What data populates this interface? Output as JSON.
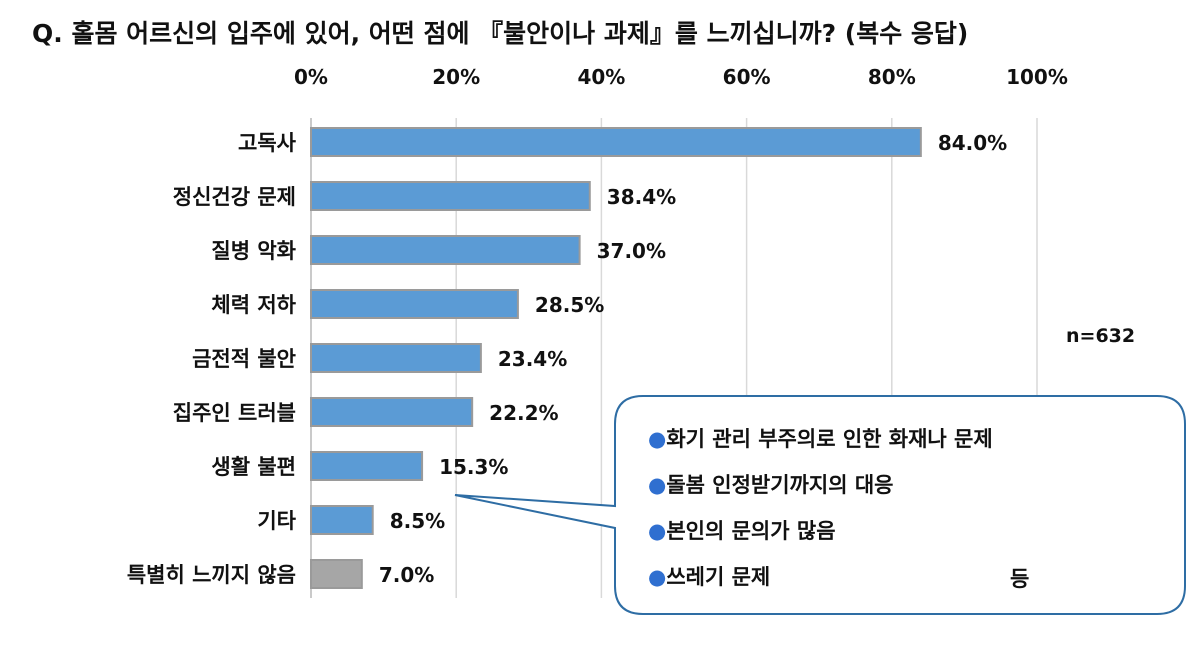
{
  "title": "Q. 홀몸 어르신의 입주에 있어, 어떤 점에 『불안이나 과제』를 느끼십니까? (복수 응답)",
  "n_label": "n=632",
  "colors": {
    "bar": "#5b9bd5",
    "bar_border": "#9a9a9a",
    "bar_other": "#a6a6a6",
    "callout_border": "#2e6da4",
    "dot": "#2f6fd0"
  },
  "callout": {
    "items": [
      "화기 관리 부주의로 인한 화재나 문제",
      "돌봄 인정받기까지의 대응",
      "본인의 문의가 많음",
      "쓰레기 문제"
    ],
    "bullet": "●",
    "suffix": "등"
  },
  "chart_data": {
    "type": "bar",
    "orientation": "horizontal",
    "categories": [
      "고독사",
      "정신건강 문제",
      "질병 악화",
      "체력 저하",
      "금전적 불안",
      "집주인 트러블",
      "생활 불편",
      "기타",
      "특별히 느끼지 않음"
    ],
    "values": [
      84.0,
      38.4,
      37.0,
      28.5,
      23.4,
      22.2,
      15.3,
      8.5,
      7.0
    ],
    "value_labels": [
      "84.0%",
      "38.4%",
      "37.0%",
      "28.5%",
      "23.4%",
      "22.2%",
      "15.3%",
      "8.5%",
      "7.0%"
    ],
    "xlim": [
      0,
      100
    ],
    "xticks": [
      "0%",
      "20%",
      "40%",
      "60%",
      "80%",
      "100%"
    ],
    "grid": true,
    "axis_position": "top"
  }
}
